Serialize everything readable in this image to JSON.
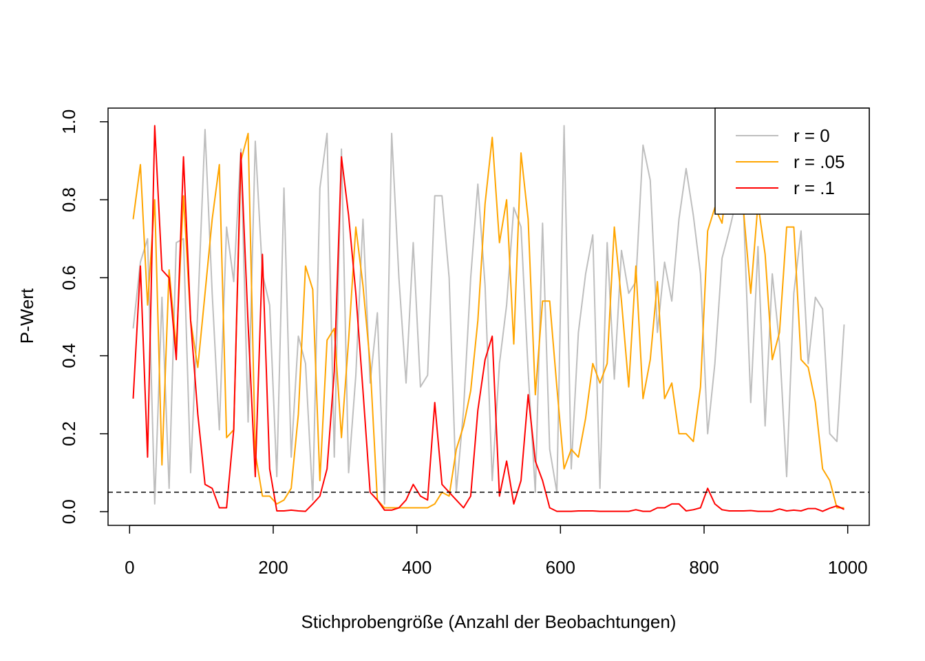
{
  "chart_data": {
    "type": "line",
    "title": "",
    "xlabel": "Stichprobengröße (Anzahl der Beobachtungen)",
    "ylabel": "P-Wert",
    "xlim": [
      -30,
      1030
    ],
    "ylim": [
      -0.035,
      1.035
    ],
    "xticks": [
      0,
      200,
      400,
      600,
      800,
      1000
    ],
    "yticks": [
      0.0,
      0.2,
      0.4,
      0.6,
      0.8,
      1.0
    ],
    "xtick_labels": [
      "0",
      "200",
      "400",
      "600",
      "800",
      "1000"
    ],
    "ytick_labels": [
      "0.0",
      "0.2",
      "0.4",
      "0.6",
      "0.8",
      "1.0"
    ],
    "grid": false,
    "legend_position": "top-right",
    "threshold": {
      "y": 0.05,
      "style": "dashed",
      "color": "#000000"
    },
    "x": [
      5,
      15,
      25,
      35,
      45,
      55,
      65,
      75,
      85,
      95,
      105,
      115,
      125,
      135,
      145,
      155,
      165,
      175,
      185,
      195,
      205,
      215,
      225,
      235,
      245,
      255,
      265,
      275,
      285,
      295,
      305,
      315,
      325,
      335,
      345,
      355,
      365,
      375,
      385,
      395,
      405,
      415,
      425,
      435,
      445,
      455,
      465,
      475,
      485,
      495,
      505,
      515,
      525,
      535,
      545,
      555,
      565,
      575,
      585,
      595,
      605,
      615,
      625,
      635,
      645,
      655,
      665,
      675,
      685,
      695,
      705,
      715,
      725,
      735,
      745,
      755,
      765,
      775,
      785,
      795,
      805,
      815,
      825,
      835,
      845,
      855,
      865,
      875,
      885,
      895,
      905,
      915,
      925,
      935,
      945,
      955,
      965,
      975,
      985,
      995
    ],
    "series": [
      {
        "name": "r = 0",
        "color": "#bebebe",
        "values": [
          0.47,
          0.64,
          0.7,
          0.02,
          0.55,
          0.06,
          0.69,
          0.7,
          0.1,
          0.52,
          0.98,
          0.56,
          0.21,
          0.73,
          0.59,
          0.93,
          0.23,
          0.95,
          0.61,
          0.53,
          0.09,
          0.83,
          0.14,
          0.45,
          0.38,
          0.03,
          0.83,
          0.97,
          0.14,
          0.93,
          0.1,
          0.35,
          0.75,
          0.33,
          0.51,
          0.02,
          0.97,
          0.6,
          0.33,
          0.69,
          0.32,
          0.35,
          0.81,
          0.81,
          0.6,
          0.05,
          0.26,
          0.6,
          0.84,
          0.58,
          0.08,
          0.38,
          0.53,
          0.78,
          0.73,
          0.36,
          0.05,
          0.74,
          0.16,
          0.05,
          0.99,
          0.11,
          0.46,
          0.61,
          0.71,
          0.06,
          0.69,
          0.34,
          0.67,
          0.56,
          0.59,
          0.94,
          0.85,
          0.46,
          0.64,
          0.54,
          0.75,
          0.88,
          0.76,
          0.61,
          0.2,
          0.38,
          0.65,
          0.72,
          0.8,
          0.77,
          0.28,
          0.68,
          0.22,
          0.61,
          0.43,
          0.09,
          0.56,
          0.72,
          0.38,
          0.55,
          0.52,
          0.2,
          0.18,
          0.48
        ]
      },
      {
        "name": "r = .05",
        "color": "#ffa500",
        "values": [
          0.75,
          0.89,
          0.53,
          0.8,
          0.12,
          0.62,
          0.42,
          0.81,
          0.49,
          0.37,
          0.56,
          0.75,
          0.89,
          0.19,
          0.21,
          0.9,
          0.97,
          0.15,
          0.04,
          0.04,
          0.02,
          0.03,
          0.06,
          0.25,
          0.63,
          0.57,
          0.08,
          0.44,
          0.47,
          0.19,
          0.44,
          0.73,
          0.58,
          0.38,
          0.03,
          0.01,
          0.01,
          0.01,
          0.01,
          0.01,
          0.01,
          0.01,
          0.02,
          0.05,
          0.04,
          0.16,
          0.22,
          0.31,
          0.49,
          0.79,
          0.96,
          0.69,
          0.8,
          0.43,
          0.92,
          0.75,
          0.3,
          0.54,
          0.54,
          0.32,
          0.11,
          0.16,
          0.14,
          0.24,
          0.38,
          0.33,
          0.38,
          0.73,
          0.54,
          0.32,
          0.63,
          0.29,
          0.39,
          0.59,
          0.29,
          0.33,
          0.2,
          0.2,
          0.18,
          0.32,
          0.72,
          0.78,
          0.74,
          0.89,
          0.92,
          0.77,
          0.56,
          0.79,
          0.66,
          0.39,
          0.46,
          0.73,
          0.73,
          0.39,
          0.37,
          0.28,
          0.11,
          0.08,
          0.01,
          0.01
        ]
      },
      {
        "name": "r = .1",
        "color": "#ff0000",
        "values": [
          0.29,
          0.63,
          0.14,
          0.99,
          0.62,
          0.6,
          0.39,
          0.91,
          0.49,
          0.25,
          0.07,
          0.06,
          0.01,
          0.01,
          0.21,
          0.92,
          0.48,
          0.09,
          0.66,
          0.11,
          0.002,
          0.002,
          0.004,
          0.002,
          0.001,
          0.02,
          0.04,
          0.11,
          0.36,
          0.91,
          0.76,
          0.56,
          0.31,
          0.05,
          0.03,
          0.004,
          0.004,
          0.01,
          0.03,
          0.07,
          0.04,
          0.03,
          0.28,
          0.07,
          0.05,
          0.03,
          0.01,
          0.04,
          0.26,
          0.39,
          0.45,
          0.04,
          0.13,
          0.02,
          0.08,
          0.3,
          0.13,
          0.08,
          0.01,
          0.001,
          0.001,
          0.001,
          0.002,
          0.002,
          0.002,
          0.001,
          0.001,
          0.001,
          0.001,
          0.001,
          0.005,
          0.001,
          0.001,
          0.01,
          0.01,
          0.02,
          0.02,
          0.002,
          0.005,
          0.01,
          0.06,
          0.02,
          0.005,
          0.002,
          0.002,
          0.002,
          0.003,
          0.001,
          0.001,
          0.001,
          0.007,
          0.002,
          0.004,
          0.002,
          0.008,
          0.008,
          0.001,
          0.009,
          0.015,
          0.006
        ]
      }
    ]
  }
}
